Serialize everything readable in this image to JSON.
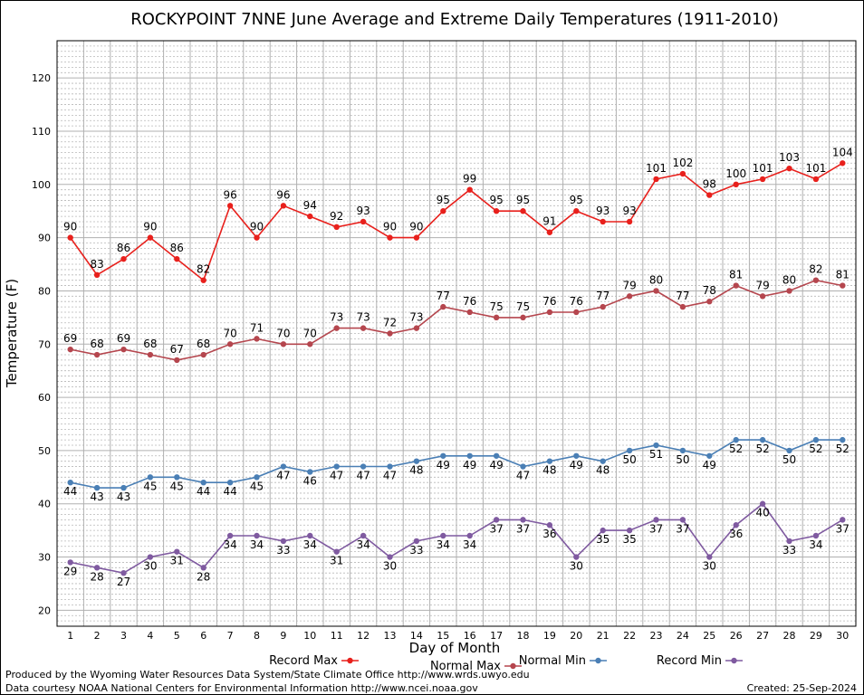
{
  "chart_data": {
    "type": "line",
    "title": "ROCKYPOINT 7NNE June Average and Extreme Daily Temperatures (1911-2010)",
    "xlabel": "Day of Month",
    "ylabel": "Temperature (F)",
    "ylim": [
      17,
      127
    ],
    "yticks": [
      20,
      30,
      40,
      50,
      60,
      70,
      80,
      90,
      100,
      110,
      120
    ],
    "x": [
      1,
      2,
      3,
      4,
      5,
      6,
      7,
      8,
      9,
      10,
      11,
      12,
      13,
      14,
      15,
      16,
      17,
      18,
      19,
      20,
      21,
      22,
      23,
      24,
      25,
      26,
      27,
      28,
      29,
      30
    ],
    "grid": true,
    "legend_position": "bottom",
    "series": [
      {
        "name": "Record Max",
        "color": "#e8201c",
        "values": [
          90,
          83,
          86,
          90,
          86,
          82,
          96,
          90,
          96,
          94,
          92,
          93,
          90,
          90,
          95,
          99,
          95,
          95,
          91,
          95,
          93,
          93,
          101,
          102,
          98,
          100,
          101,
          103,
          101,
          104
        ]
      },
      {
        "name": "Normal Max",
        "color": "#b5464e",
        "values": [
          69,
          68,
          69,
          68,
          67,
          68,
          70,
          71,
          70,
          70,
          73,
          73,
          72,
          73,
          77,
          76,
          75,
          75,
          76,
          76,
          77,
          79,
          80,
          77,
          78,
          81,
          79,
          80,
          82,
          81
        ]
      },
      {
        "name": "Normal Min",
        "color": "#4a7fb5",
        "values": [
          44,
          43,
          43,
          45,
          45,
          44,
          44,
          45,
          47,
          46,
          47,
          47,
          47,
          48,
          49,
          49,
          49,
          47,
          48,
          49,
          48,
          50,
          51,
          50,
          49,
          52,
          52,
          50,
          52,
          52
        ]
      },
      {
        "name": "Record Min",
        "color": "#7f5aa0",
        "values": [
          29,
          28,
          27,
          30,
          31,
          28,
          34,
          34,
          33,
          34,
          31,
          34,
          30,
          33,
          34,
          34,
          37,
          37,
          36,
          30,
          35,
          35,
          37,
          37,
          30,
          36,
          40,
          33,
          34,
          37
        ]
      }
    ]
  },
  "footer": {
    "line1": "Produced by the Wyoming Water Resources Data System/State Climate Office http://www.wrds.uwyo.edu",
    "line2": "Data courtesy NOAA National Centers for Environmental Information http://www.ncei.noaa.gov",
    "created": "Created:  25-Sep-2024"
  }
}
